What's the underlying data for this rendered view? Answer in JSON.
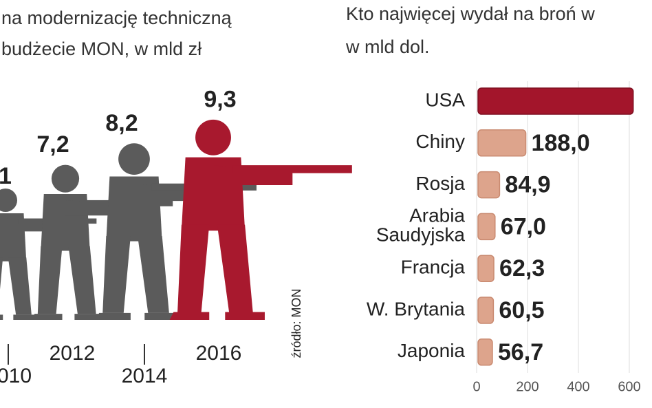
{
  "chart_data": [
    {
      "type": "pictogram",
      "title_lines": [
        "na modernizację techniczną",
        "budżecie MON, w mld zł"
      ],
      "annotations": [
        "1",
        "010"
      ],
      "categories": [
        "2012",
        "2014",
        "2016"
      ],
      "values": [
        7.2,
        8.2,
        9.3
      ],
      "value_labels": [
        "7,2",
        "8,2",
        "9,3"
      ],
      "colors": [
        "#5b5b5b",
        "#5b5b5b",
        "#a8192e"
      ],
      "source": "źródło: MON"
    },
    {
      "type": "hbar",
      "title_lines": [
        "Kto najwięcej wydał na broń w",
        "w mld dol."
      ],
      "categories": [
        "USA",
        "Chiny",
        "Rosja",
        "Arabia Saudyjska",
        "Francja",
        "W. Brytania",
        "Japonia"
      ],
      "values": [
        610,
        188.0,
        84.9,
        67.0,
        62.3,
        60.5,
        56.7
      ],
      "value_labels": [
        null,
        "188,0",
        "84,9",
        "67,0",
        "62,3",
        "60,5",
        "56,7"
      ],
      "colors": [
        "#a3152b",
        "#dda48c",
        "#dda48c",
        "#dda48c",
        "#dda48c",
        "#dda48c",
        "#dda48c"
      ],
      "xlim": [
        0,
        700
      ],
      "xticks": [
        0,
        200,
        400,
        600
      ],
      "grid": true
    }
  ]
}
